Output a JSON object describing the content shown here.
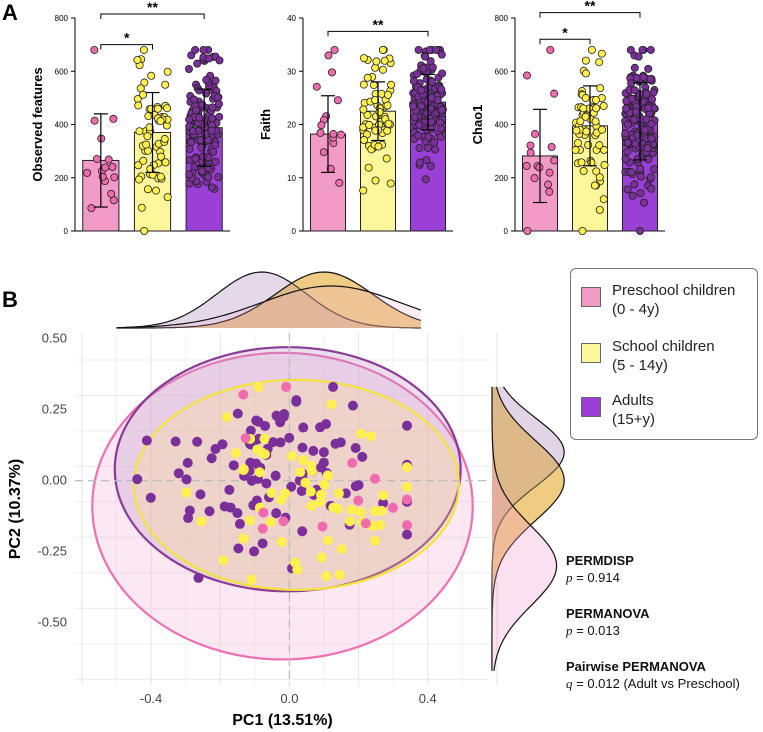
{
  "panel_a_label": "A",
  "panel_b_label": "B",
  "colors": {
    "preschool": "#f39bc7",
    "school": "#fbf79a",
    "adults": "#9b40d6",
    "pre_point": "#f06ab0",
    "school_point": "#fff04d",
    "adult_point": "#7b2f9a",
    "pre_ellipse": "#ee6fb3",
    "school_ellipse": "#f4e13a",
    "adult_ellipse": "#8a3b96",
    "density_tan": "#f0c27a"
  },
  "chart_data": [
    {
      "type": "bar",
      "title": "",
      "ylabel": "Observed features",
      "ylim": [
        0,
        800
      ],
      "yticks": [
        "0",
        "200",
        "400",
        "600",
        "800"
      ],
      "categories": [
        "Preschool children",
        "School children",
        "Adults"
      ],
      "values": [
        265,
        370,
        388
      ],
      "sd": [
        175,
        150,
        145
      ],
      "significance": [
        {
          "from": 0,
          "to": 1,
          "label": "*",
          "level": 700
        },
        {
          "from": 0,
          "to": 2,
          "label": "**",
          "level": 815
        }
      ]
    },
    {
      "type": "bar",
      "title": "",
      "ylabel": "Faith",
      "ylim": [
        0,
        40
      ],
      "yticks": [
        "0",
        "10",
        "20",
        "30",
        "40"
      ],
      "categories": [
        "Preschool children",
        "School children",
        "Adults"
      ],
      "values": [
        18.2,
        22.5,
        24.2
      ],
      "sd": [
        7.2,
        5.5,
        5.2
      ],
      "significance": [
        {
          "from": 0,
          "to": 2,
          "label": "**",
          "level": 37.5
        }
      ]
    },
    {
      "type": "bar",
      "title": "",
      "ylabel": "Chao1",
      "ylim": [
        0,
        800
      ],
      "yticks": [
        "0",
        "200",
        "400",
        "600",
        "800"
      ],
      "categories": [
        "Preschool children",
        "School children",
        "Adults"
      ],
      "values": [
        282,
        395,
        412
      ],
      "sd": [
        175,
        150,
        145
      ],
      "significance": [
        {
          "from": 0,
          "to": 1,
          "label": "*",
          "level": 720
        },
        {
          "from": 0,
          "to": 2,
          "label": "**",
          "level": 820
        }
      ]
    },
    {
      "type": "scatter",
      "title": "",
      "xlabel": "PC1 (13.51%)",
      "ylabel": "PC2 (10.37%)",
      "xlim": [
        -0.62,
        0.58
      ],
      "ylim": [
        -0.72,
        0.52
      ],
      "xticks": [
        -0.4,
        0.0,
        0.4
      ],
      "xtick_labels": [
        "-0.4",
        "0.0",
        "0.4"
      ],
      "yticks": [
        0.5,
        0.25,
        0.0,
        -0.25,
        -0.5
      ],
      "ytick_labels": [
        "0.50",
        "0.25",
        "0.00",
        "-0.25",
        "-0.50"
      ],
      "ellipses": [
        {
          "group": "Preschool children",
          "cx": -0.02,
          "cy": -0.09,
          "rx": 0.55,
          "ry": 0.54
        },
        {
          "group": "Adults",
          "cx": -0.005,
          "cy": 0.04,
          "rx": 0.5,
          "ry": 0.43
        },
        {
          "group": "School children",
          "cx": 0.02,
          "cy": -0.015,
          "rx": 0.47,
          "ry": 0.37
        }
      ],
      "density_x": {
        "Preschool children": {
          "mean": 0.12,
          "sd": 0.2
        },
        "School children": {
          "mean": 0.1,
          "sd": 0.14
        },
        "Adults": {
          "mean": -0.08,
          "sd": 0.13
        }
      },
      "density_y": {
        "Preschool children": {
          "mean": -0.3,
          "sd": 0.14
        },
        "School children": {
          "mean": 0.0,
          "sd": 0.14
        },
        "Adults": {
          "mean": 0.1,
          "sd": 0.12
        }
      }
    }
  ],
  "legend": [
    {
      "key": "preschool",
      "label": "Preschool children",
      "sub": "(0 - 4y)"
    },
    {
      "key": "school",
      "label": "School children",
      "sub": "(5 - 14y)"
    },
    {
      "key": "adults",
      "label": "Adults",
      "sub": "(15+y)"
    }
  ],
  "stats": {
    "permdisp": {
      "title": "PERMDISP",
      "p_label": "p",
      "value": " = 0.914"
    },
    "permanova": {
      "title": "PERMANOVA",
      "p_label": "p",
      "value": " = 0.013"
    },
    "pairwise": {
      "title": "Pairwise PERMANOVA",
      "q_label": "q",
      "value": " = 0.012 (Adult vs Preschool)"
    }
  }
}
